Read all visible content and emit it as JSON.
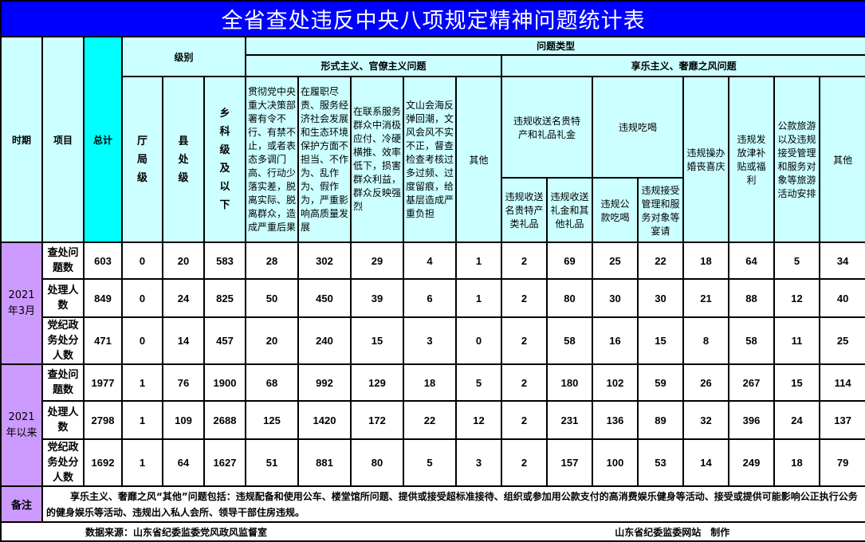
{
  "title": "全省查处违反中央八项规定精神问题统计表",
  "colors": {
    "title_bg": "#0000ff",
    "header_bg": "#ccffff",
    "total_header_bg": "#00ffff",
    "period_bg": "#cc99ff"
  },
  "header": {
    "period": "时期",
    "item": "项目",
    "total": "总计",
    "level": "级别",
    "levels": [
      "厅局级",
      "县处级",
      "乡科级及以下"
    ],
    "problem_type": "问题类型",
    "formalism": "形式主义、官僚主义问题",
    "formalism_cols": [
      "贯彻党中央重大决策部署有令不行、有禁不止，或者表态多调门高、行动少落实差，脱离实际、脱离群众，造成严重后果",
      "在履职尽责、服务经济社会发展和生态环境保护方面不担当、不作为、乱作为、假作为，严重影响高质量发展",
      "在联系服务群众中消极应付、冷硬横推、效率低下，损害群众利益，群众反映强烈",
      "文山会海反弹回潮，文风会风不实不正，督查检查考核过多过频、过度留痕，给基层造成严重负担",
      "其他"
    ],
    "hedonism": "享乐主义、奢靡之风问题",
    "gifts": "违规收送名贵特产和礼品礼金",
    "gifts_sub": [
      "违规收送名贵特产类礼品",
      "违规收送礼金和其他礼品"
    ],
    "dining": "违规吃喝",
    "dining_sub": [
      "违规公款吃喝",
      "违规接受管理和服务对象等宴请"
    ],
    "hedonism_cols": [
      "违规操办婚丧喜庆",
      "违规发放津补贴或福利",
      "公款旅游以及违规接受管理和服务对象等旅游活动安排",
      "其他"
    ]
  },
  "periods": [
    {
      "label": "2021年3月",
      "rows": [
        {
          "item": "查处问题数",
          "values": [
            603,
            0,
            20,
            583,
            28,
            302,
            29,
            4,
            1,
            2,
            69,
            25,
            22,
            18,
            64,
            5,
            34
          ]
        },
        {
          "item": "处理人数",
          "values": [
            849,
            0,
            24,
            825,
            50,
            450,
            39,
            6,
            1,
            2,
            80,
            30,
            30,
            21,
            88,
            12,
            40
          ]
        },
        {
          "item": "党纪政务处分人数",
          "values": [
            471,
            0,
            14,
            457,
            20,
            240,
            15,
            3,
            0,
            2,
            58,
            16,
            15,
            8,
            58,
            11,
            25
          ]
        }
      ]
    },
    {
      "label": "2021年以来",
      "rows": [
        {
          "item": "查处问题数",
          "values": [
            1977,
            1,
            76,
            1900,
            68,
            992,
            129,
            18,
            5,
            2,
            180,
            102,
            59,
            26,
            267,
            15,
            114
          ]
        },
        {
          "item": "处理人数",
          "values": [
            2798,
            1,
            109,
            2688,
            125,
            1420,
            172,
            22,
            12,
            2,
            231,
            136,
            89,
            32,
            396,
            24,
            137
          ]
        },
        {
          "item": "党纪政务处分人数",
          "values": [
            1692,
            1,
            64,
            1627,
            51,
            881,
            80,
            5,
            3,
            2,
            157,
            100,
            53,
            14,
            249,
            18,
            79
          ]
        }
      ]
    }
  ],
  "notes": {
    "label": "备注",
    "text": "享乐主义、奢靡之风“其他”问题包括：违规配备和使用公车、楼堂馆所问题、提供或接受超标准接待、组织或参加用公款支付的高消费娱乐健身等活动、接受或提供可能影响公正执行公务的健身娱乐等活动、违规出入私人会所、领导干部住房违规。"
  },
  "footer": {
    "source": "数据来源：山东省纪委监委党风政风监督室",
    "producer": "山东省纪委监委网站　制作"
  }
}
